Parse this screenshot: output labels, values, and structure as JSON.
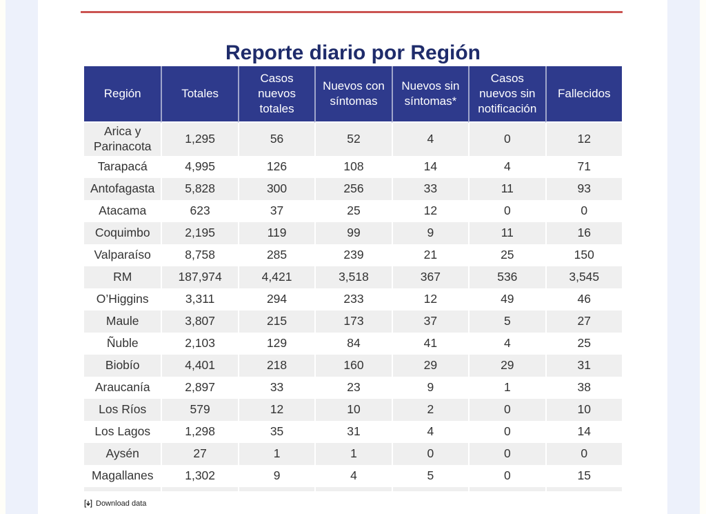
{
  "title": "Reporte diario por Región",
  "chart_data": {
    "type": "table",
    "title": "Reporte diario por Región",
    "columns": [
      "Región",
      "Totales",
      "Casos nuevos totales",
      "Nuevos con síntomas",
      "Nuevos sin síntomas*",
      "Casos nuevos sin notificación",
      "Fallecidos"
    ],
    "rows": [
      [
        "Arica y Parinacota",
        "1,295",
        "56",
        "52",
        "4",
        "0",
        "12"
      ],
      [
        "Tarapacá",
        "4,995",
        "126",
        "108",
        "14",
        "4",
        "71"
      ],
      [
        "Antofagasta",
        "5,828",
        "300",
        "256",
        "33",
        "11",
        "93"
      ],
      [
        "Atacama",
        "623",
        "37",
        "25",
        "12",
        "0",
        "0"
      ],
      [
        "Coquimbo",
        "2,195",
        "119",
        "99",
        "9",
        "11",
        "16"
      ],
      [
        "Valparaíso",
        "8,758",
        "285",
        "239",
        "21",
        "25",
        "150"
      ],
      [
        "RM",
        "187,974",
        "4,421",
        "3,518",
        "367",
        "536",
        "3,545"
      ],
      [
        "O’Higgins",
        "3,311",
        "294",
        "233",
        "12",
        "49",
        "46"
      ],
      [
        "Maule",
        "3,807",
        "215",
        "173",
        "37",
        "5",
        "27"
      ],
      [
        "Ñuble",
        "2,103",
        "129",
        "84",
        "41",
        "4",
        "25"
      ],
      [
        "Biobío",
        "4,401",
        "218",
        "160",
        "29",
        "29",
        "31"
      ],
      [
        "Araucanía",
        "2,897",
        "33",
        "23",
        "9",
        "1",
        "38"
      ],
      [
        "Los Ríos",
        "579",
        "12",
        "10",
        "2",
        "0",
        "10"
      ],
      [
        "Los Lagos",
        "1,298",
        "35",
        "31",
        "4",
        "0",
        "14"
      ],
      [
        "Aysén",
        "27",
        "1",
        "1",
        "0",
        "0",
        "0"
      ],
      [
        "Magallanes",
        "1,302",
        "9",
        "4",
        "5",
        "0",
        "15"
      ]
    ]
  },
  "footer": {
    "download_label": "Download data"
  },
  "colors": {
    "header_bg": "#2e3a8c",
    "title_text": "#1f2c6b",
    "accent_line": "#cb5351",
    "row_stripe": "#efefef",
    "side_band": "#edf1fb",
    "body_text": "#333333"
  }
}
